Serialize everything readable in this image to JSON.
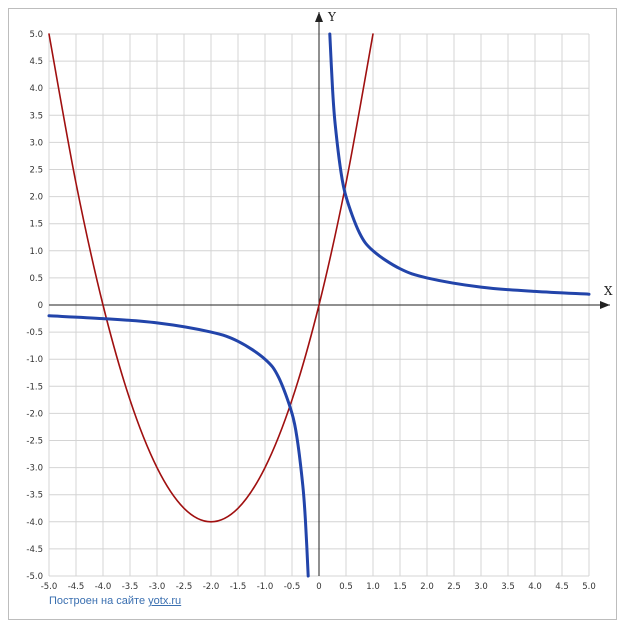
{
  "chart_data": {
    "type": "line",
    "xlabel": "X",
    "ylabel": "Y",
    "xlim": [
      -5.0,
      5.0
    ],
    "ylim": [
      -5.0,
      5.0
    ],
    "grid": true,
    "x_ticks": [
      "-5.0",
      "-4.5",
      "-4.0",
      "-3.5",
      "-3.0",
      "-2.5",
      "-2.0",
      "-1.5",
      "-1.0",
      "-0.5",
      "0",
      "0.5",
      "1.0",
      "1.5",
      "2.0",
      "2.5",
      "3.0",
      "3.5",
      "4.0",
      "4.5",
      "5.0"
    ],
    "y_ticks": [
      "5.0",
      "4.5",
      "4.0",
      "3.5",
      "3.0",
      "2.5",
      "2.0",
      "1.5",
      "1.0",
      "0.5",
      "0",
      "-0.5",
      "-1.0",
      "-1.5",
      "-2.0",
      "-2.5",
      "-3.0",
      "-3.5",
      "-4.0",
      "-4.5",
      "-5.0"
    ],
    "series": [
      {
        "color": "#a01010",
        "points": [
          [
            -5.0,
            5.0
          ],
          [
            -4.5,
            2.25
          ],
          [
            -4.0,
            0.0
          ],
          [
            -3.5,
            -1.75
          ],
          [
            -3.0,
            -3.0
          ],
          [
            -2.5,
            -3.75
          ],
          [
            -2.0,
            -4.0
          ],
          [
            -1.5,
            -3.75
          ],
          [
            -1.0,
            -3.0
          ],
          [
            -0.5,
            -1.75
          ],
          [
            0.0,
            0.0
          ],
          [
            0.5,
            2.25
          ],
          [
            1.0,
            5.0
          ]
        ]
      },
      {
        "color": "#2244aa",
        "points": [
          [
            -5.0,
            -0.2
          ],
          [
            -4.0,
            -0.25
          ],
          [
            -3.0,
            -0.33
          ],
          [
            -2.0,
            -0.5
          ],
          [
            -1.5,
            -0.67
          ],
          [
            -1.0,
            -1.0
          ],
          [
            -0.75,
            -1.33
          ],
          [
            -0.5,
            -2.0
          ],
          [
            -0.4,
            -2.5
          ],
          [
            -0.3,
            -3.33
          ],
          [
            -0.25,
            -4.0
          ],
          [
            -0.2,
            -5.0
          ]
        ]
      },
      {
        "color": "#2244aa",
        "points": [
          [
            0.2,
            5.0
          ],
          [
            0.25,
            4.0
          ],
          [
            0.3,
            3.33
          ],
          [
            0.4,
            2.5
          ],
          [
            0.5,
            2.0
          ],
          [
            0.75,
            1.33
          ],
          [
            1.0,
            1.0
          ],
          [
            1.5,
            0.67
          ],
          [
            2.0,
            0.5
          ],
          [
            3.0,
            0.33
          ],
          [
            4.0,
            0.25
          ],
          [
            5.0,
            0.2
          ]
        ]
      }
    ]
  },
  "footer": {
    "credit_prefix": "Построен на сайте ",
    "credit_link": "yotx.ru"
  }
}
